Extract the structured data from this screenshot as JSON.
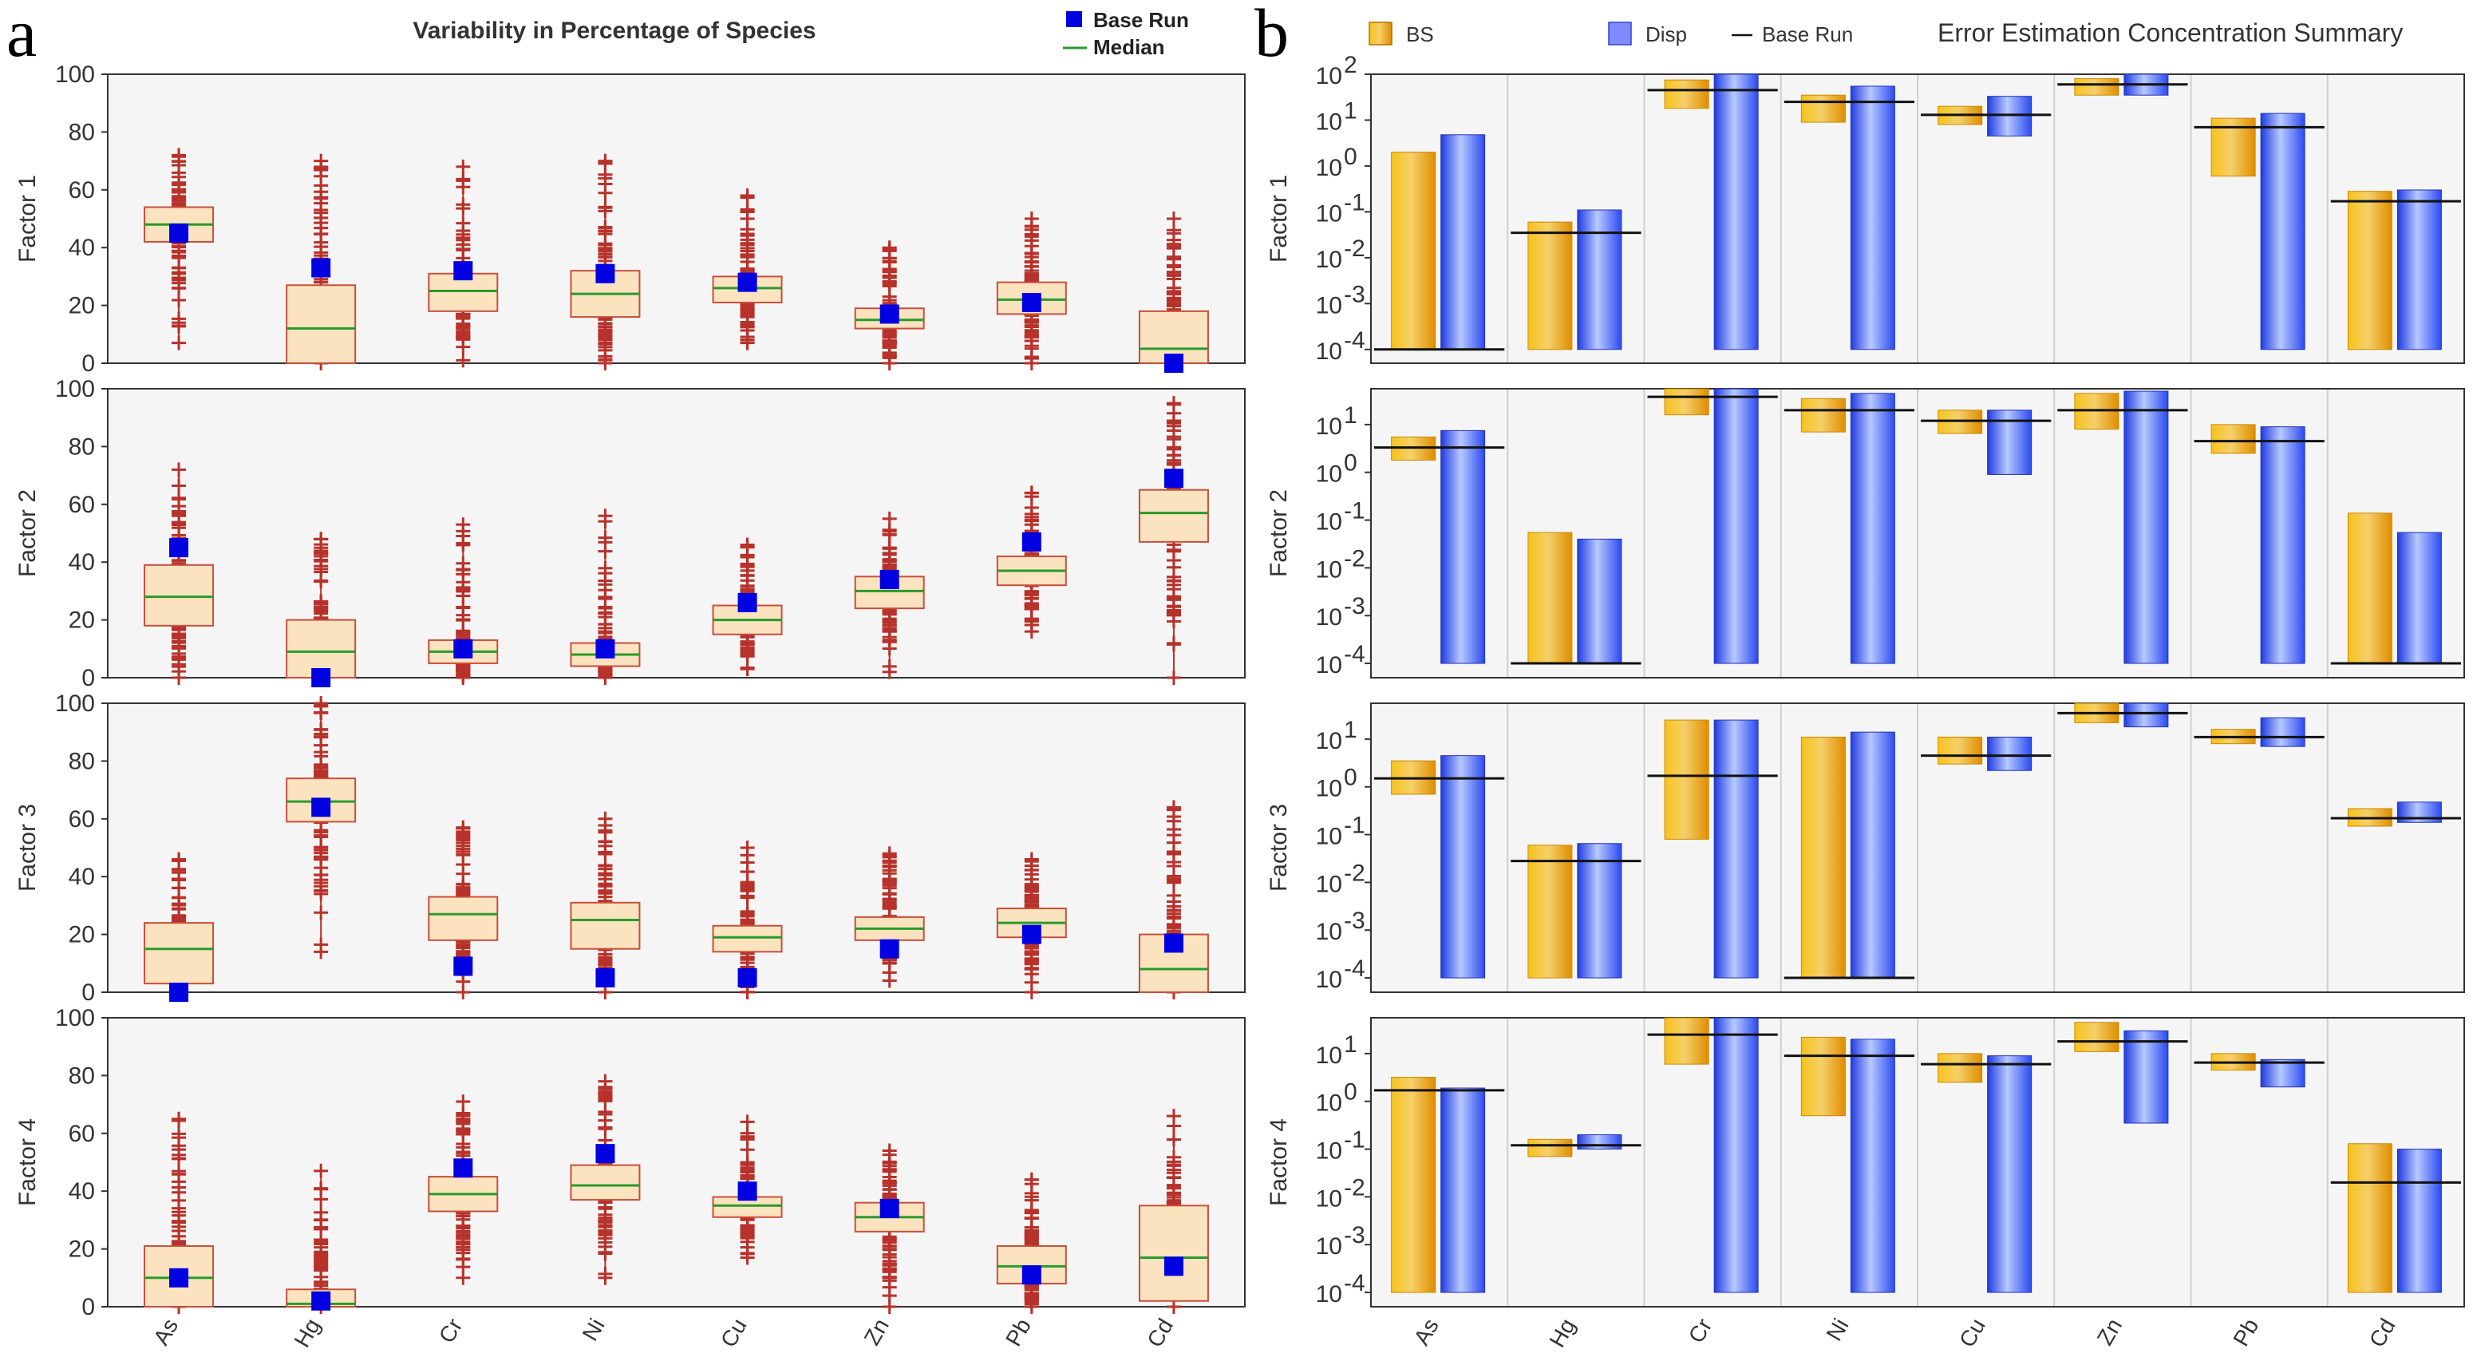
{
  "panel_labels": {
    "a": "a",
    "b": "b"
  },
  "colors": {
    "box_fill": "#fbe3c0",
    "box_stroke": "#c84f3c",
    "whisker": "#b7322b",
    "outlier": "#b7322b",
    "median": "#2a9a2a",
    "base_run_marker": "#0000e0",
    "bs_bar": "#f0a800",
    "disp_bar": "#3355ee",
    "base_run_line": "#111111",
    "plot_bg": "#f6f5f5"
  },
  "chart_data": [
    {
      "type": "box",
      "title": "Variability in Percentage of Species",
      "legend": [
        {
          "label": "Base Run",
          "icon": "blue-square-icon"
        },
        {
          "label": "Median",
          "icon": "green-line-icon"
        }
      ],
      "categories": [
        "As",
        "Hg",
        "Cr",
        "Ni",
        "Cu",
        "Zn",
        "Pb",
        "Cd"
      ],
      "ylim": [
        0,
        100
      ],
      "yticks": [
        "0",
        "20",
        "40",
        "60",
        "80",
        "100"
      ],
      "factors": [
        {
          "label": "Factor 1",
          "boxes": [
            {
              "q1": 42,
              "median": 48,
              "q3": 54,
              "min": 7,
              "max": 72,
              "base_run": 45
            },
            {
              "q1": 0,
              "median": 12,
              "q3": 27,
              "min": 0,
              "max": 70,
              "base_run": 33
            },
            {
              "q1": 18,
              "median": 25,
              "q3": 31,
              "min": 1,
              "max": 68,
              "base_run": 32
            },
            {
              "q1": 16,
              "median": 24,
              "q3": 32,
              "min": 0,
              "max": 70,
              "base_run": 31
            },
            {
              "q1": 21,
              "median": 26,
              "q3": 30,
              "min": 7,
              "max": 58,
              "base_run": 28
            },
            {
              "q1": 12,
              "median": 15,
              "q3": 19,
              "min": 0,
              "max": 40,
              "base_run": 17
            },
            {
              "q1": 17,
              "median": 22,
              "q3": 28,
              "min": 0,
              "max": 50,
              "base_run": 21
            },
            {
              "q1": 0,
              "median": 5,
              "q3": 18,
              "min": 0,
              "max": 50,
              "base_run": 0
            }
          ]
        },
        {
          "label": "Factor 2",
          "boxes": [
            {
              "q1": 18,
              "median": 28,
              "q3": 39,
              "min": 0,
              "max": 72,
              "base_run": 45
            },
            {
              "q1": 0,
              "median": 9,
              "q3": 20,
              "min": 0,
              "max": 48,
              "base_run": 0
            },
            {
              "q1": 5,
              "median": 9,
              "q3": 13,
              "min": 0,
              "max": 53,
              "base_run": 10
            },
            {
              "q1": 4,
              "median": 8,
              "q3": 12,
              "min": 0,
              "max": 56,
              "base_run": 10
            },
            {
              "q1": 15,
              "median": 20,
              "q3": 25,
              "min": 3,
              "max": 46,
              "base_run": 26
            },
            {
              "q1": 24,
              "median": 30,
              "q3": 35,
              "min": 2,
              "max": 55,
              "base_run": 34
            },
            {
              "q1": 32,
              "median": 37,
              "q3": 42,
              "min": 16,
              "max": 64,
              "base_run": 47
            },
            {
              "q1": 47,
              "median": 57,
              "q3": 65,
              "min": 0,
              "max": 95,
              "base_run": 69
            }
          ]
        },
        {
          "label": "Factor 3",
          "boxes": [
            {
              "q1": 3,
              "median": 15,
              "q3": 24,
              "min": 0,
              "max": 46,
              "base_run": 0
            },
            {
              "q1": 59,
              "median": 66,
              "q3": 74,
              "min": 14,
              "max": 100,
              "base_run": 64
            },
            {
              "q1": 18,
              "median": 27,
              "q3": 33,
              "min": 0,
              "max": 57,
              "base_run": 9
            },
            {
              "q1": 15,
              "median": 25,
              "q3": 31,
              "min": 0,
              "max": 60,
              "base_run": 5
            },
            {
              "q1": 14,
              "median": 19,
              "q3": 23,
              "min": 0,
              "max": 50,
              "base_run": 5
            },
            {
              "q1": 18,
              "median": 22,
              "q3": 26,
              "min": 4,
              "max": 48,
              "base_run": 15
            },
            {
              "q1": 19,
              "median": 24,
              "q3": 29,
              "min": 0,
              "max": 46,
              "base_run": 20
            },
            {
              "q1": 0,
              "median": 8,
              "q3": 20,
              "min": 0,
              "max": 64,
              "base_run": 17
            }
          ]
        },
        {
          "label": "Factor 4",
          "boxes": [
            {
              "q1": 0,
              "median": 10,
              "q3": 21,
              "min": 0,
              "max": 65,
              "base_run": 10
            },
            {
              "q1": 0,
              "median": 1,
              "q3": 6,
              "min": 0,
              "max": 47,
              "base_run": 2
            },
            {
              "q1": 33,
              "median": 39,
              "q3": 45,
              "min": 10,
              "max": 71,
              "base_run": 48
            },
            {
              "q1": 37,
              "median": 42,
              "q3": 49,
              "min": 10,
              "max": 78,
              "base_run": 53
            },
            {
              "q1": 31,
              "median": 35,
              "q3": 38,
              "min": 17,
              "max": 64,
              "base_run": 40
            },
            {
              "q1": 26,
              "median": 31,
              "q3": 36,
              "min": 0,
              "max": 54,
              "base_run": 34
            },
            {
              "q1": 8,
              "median": 14,
              "q3": 21,
              "min": 0,
              "max": 44,
              "base_run": 11
            },
            {
              "q1": 2,
              "median": 17,
              "q3": 35,
              "min": 0,
              "max": 66,
              "base_run": 14
            }
          ]
        }
      ]
    },
    {
      "type": "bar",
      "title": "Error Estimation Concentration Summary",
      "yscale": "log",
      "legend": [
        {
          "label": "BS",
          "icon": "orange-square-icon"
        },
        {
          "label": "Disp",
          "icon": "blue-square-icon"
        },
        {
          "label": "Base Run",
          "icon": "black-line-icon"
        }
      ],
      "categories": [
        "As",
        "Hg",
        "Cr",
        "Ni",
        "Cu",
        "Zn",
        "Pb",
        "Cd"
      ],
      "factors": [
        {
          "label": "Factor 1",
          "ylim_log10": [
            -4.3,
            2
          ],
          "yticks": [
            {
              "exp": 2,
              "text": "10",
              "sup": "2"
            },
            {
              "exp": 1,
              "text": "10",
              "sup": "1"
            },
            {
              "exp": 0,
              "text": "10",
              "sup": "0"
            },
            {
              "exp": -1,
              "text": "10",
              "sup": "-1"
            },
            {
              "exp": -2,
              "text": "10",
              "sup": "-2"
            },
            {
              "exp": -3,
              "text": "10",
              "sup": "-3"
            },
            {
              "exp": -4,
              "text": "10",
              "sup": "-4"
            }
          ],
          "bars": [
            {
              "bs": [
                0.0001,
                2.0
              ],
              "disp": [
                0.0001,
                4.8
              ],
              "base_run": 0.0001
            },
            {
              "bs": [
                0.0001,
                0.06
              ],
              "disp": [
                0.0001,
                0.11
              ],
              "base_run": 0.035
            },
            {
              "bs": [
                18,
                75
              ],
              "disp": [
                0.0001,
                100
              ],
              "base_run": 45
            },
            {
              "bs": [
                9,
                35
              ],
              "disp": [
                0.0001,
                55
              ],
              "base_run": 25
            },
            {
              "bs": [
                8,
                20
              ],
              "disp": [
                4.5,
                33
              ],
              "base_run": 13
            },
            {
              "bs": [
                35,
                80
              ],
              "disp": [
                35,
                100
              ],
              "base_run": 60
            },
            {
              "bs": [
                0.6,
                11
              ],
              "disp": [
                0.0001,
                14
              ],
              "base_run": 7
            },
            {
              "bs": [
                0.0001,
                0.28
              ],
              "disp": [
                0.0001,
                0.3
              ],
              "base_run": 0.17
            }
          ]
        },
        {
          "label": "Factor 2",
          "ylim_log10": [
            -4.3,
            1.75
          ],
          "yticks": [
            {
              "exp": 1,
              "text": "10",
              "sup": "1"
            },
            {
              "exp": 0,
              "text": "10",
              "sup": "0"
            },
            {
              "exp": -1,
              "text": "10",
              "sup": "-1"
            },
            {
              "exp": -2,
              "text": "10",
              "sup": "-2"
            },
            {
              "exp": -3,
              "text": "10",
              "sup": "-3"
            },
            {
              "exp": -4,
              "text": "10",
              "sup": "-4"
            }
          ],
          "bars": [
            {
              "bs": [
                1.8,
                5.5
              ],
              "disp": [
                0.0001,
                7.5
              ],
              "base_run": 3.3
            },
            {
              "bs": [
                0.0001,
                0.055
              ],
              "disp": [
                0.0001,
                0.04
              ],
              "base_run": 0.0001
            },
            {
              "bs": [
                16,
                56
              ],
              "disp": [
                0.0001,
                56
              ],
              "base_run": 38
            },
            {
              "bs": [
                7,
                35
              ],
              "disp": [
                0.0001,
                45
              ],
              "base_run": 20
            },
            {
              "bs": [
                6.5,
                20
              ],
              "disp": [
                0.9,
                20
              ],
              "base_run": 12
            },
            {
              "bs": [
                8,
                45
              ],
              "disp": [
                0.0001,
                50
              ],
              "base_run": 20
            },
            {
              "bs": [
                2.5,
                10
              ],
              "disp": [
                0.0001,
                9
              ],
              "base_run": 4.5
            },
            {
              "bs": [
                0.0001,
                0.14
              ],
              "disp": [
                0.0001,
                0.055
              ],
              "base_run": 0.0001
            }
          ]
        },
        {
          "label": "Factor 3",
          "ylim_log10": [
            -4.3,
            1.75
          ],
          "yticks": [
            {
              "exp": 1,
              "text": "10",
              "sup": "1"
            },
            {
              "exp": 0,
              "text": "10",
              "sup": "0"
            },
            {
              "exp": -1,
              "text": "10",
              "sup": "-1"
            },
            {
              "exp": -2,
              "text": "10",
              "sup": "-2"
            },
            {
              "exp": -3,
              "text": "10",
              "sup": "-3"
            },
            {
              "exp": -4,
              "text": "10",
              "sup": "-4"
            }
          ],
          "bars": [
            {
              "bs": [
                0.7,
                3.5
              ],
              "disp": [
                0.0001,
                4.5
              ],
              "base_run": 1.5
            },
            {
              "bs": [
                0.0001,
                0.06
              ],
              "disp": [
                0.0001,
                0.065
              ],
              "base_run": 0.028
            },
            {
              "bs": [
                0.08,
                25
              ],
              "disp": [
                0.0001,
                25
              ],
              "base_run": 1.7
            },
            {
              "bs": [
                0.0001,
                11
              ],
              "disp": [
                0.0001,
                14
              ],
              "base_run": 0.0001
            },
            {
              "bs": [
                3,
                11
              ],
              "disp": [
                2.2,
                11
              ],
              "base_run": 4.5
            },
            {
              "bs": [
                22,
                56
              ],
              "disp": [
                18,
                56
              ],
              "base_run": 35
            },
            {
              "bs": [
                8,
                16
              ],
              "disp": [
                7,
                28
              ],
              "base_run": 11
            },
            {
              "bs": [
                0.15,
                0.35
              ],
              "disp": [
                0.18,
                0.48
              ],
              "base_run": 0.22
            }
          ]
        },
        {
          "label": "Factor 4",
          "ylim_log10": [
            -4.3,
            1.75
          ],
          "yticks": [
            {
              "exp": 1,
              "text": "10",
              "sup": "1"
            },
            {
              "exp": 0,
              "text": "10",
              "sup": "0"
            },
            {
              "exp": -1,
              "text": "10",
              "sup": "-1"
            },
            {
              "exp": -2,
              "text": "10",
              "sup": "-2"
            },
            {
              "exp": -3,
              "text": "10",
              "sup": "-3"
            },
            {
              "exp": -4,
              "text": "10",
              "sup": "-4"
            }
          ],
          "bars": [
            {
              "bs": [
                0.0001,
                3.2
              ],
              "disp": [
                0.0001,
                1.9
              ],
              "base_run": 1.7
            },
            {
              "bs": [
                0.07,
                0.16
              ],
              "disp": [
                0.1,
                0.2
              ],
              "base_run": 0.12
            },
            {
              "bs": [
                6,
                56
              ],
              "disp": [
                0.0001,
                56
              ],
              "base_run": 25
            },
            {
              "bs": [
                0.5,
                22
              ],
              "disp": [
                0.0001,
                20
              ],
              "base_run": 9
            },
            {
              "bs": [
                2.5,
                10
              ],
              "disp": [
                0.0001,
                9
              ],
              "base_run": 6
            },
            {
              "bs": [
                11,
                45
              ],
              "disp": [
                0.35,
                30
              ],
              "base_run": 18
            },
            {
              "bs": [
                4.5,
                10
              ],
              "disp": [
                2,
                7.5
              ],
              "base_run": 6.5
            },
            {
              "bs": [
                0.0001,
                0.13
              ],
              "disp": [
                0.0001,
                0.1
              ],
              "base_run": 0.02
            }
          ]
        }
      ]
    }
  ]
}
